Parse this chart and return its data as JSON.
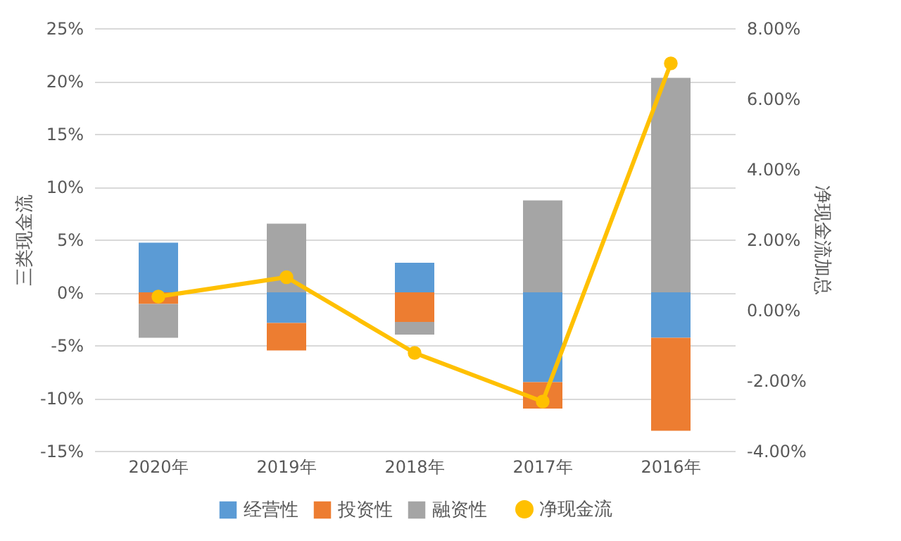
{
  "chart_data": {
    "type": "bar",
    "stacked": true,
    "xlabel": null,
    "ylabel": "三类现金流",
    "y2label": "净现金流加总",
    "categories": [
      "2020年",
      "2019年",
      "2018年",
      "2017年",
      "2016年"
    ],
    "series": [
      {
        "name": "经营性",
        "color": "#5b9bd5",
        "values": [
          4.7,
          -2.9,
          2.8,
          -8.5,
          -4.3
        ]
      },
      {
        "name": "投资性",
        "color": "#ed7d31",
        "values": [
          -1.1,
          -2.6,
          -2.8,
          -2.5,
          -8.8
        ]
      },
      {
        "name": "融资性",
        "color": "#a5a5a5",
        "values": [
          -3.2,
          6.5,
          -1.2,
          8.7,
          20.3
        ]
      },
      {
        "name": "净现金流",
        "type": "line",
        "axis": "y2",
        "color": "#ffc000",
        "values": [
          0.38,
          0.93,
          -1.22,
          -2.6,
          7.0
        ]
      }
    ],
    "ylim": [
      -15,
      25
    ],
    "yticks": [
      {
        "value": -15,
        "label": "-15%"
      },
      {
        "value": -10,
        "label": "-10%"
      },
      {
        "value": -5,
        "label": "-5%"
      },
      {
        "value": 0,
        "label": "0%"
      },
      {
        "value": 5,
        "label": "5%"
      },
      {
        "value": 10,
        "label": "10%"
      },
      {
        "value": 15,
        "label": "15%"
      },
      {
        "value": 20,
        "label": "20%"
      },
      {
        "value": 25,
        "label": "25%"
      }
    ],
    "y2lim": [
      -4,
      8
    ],
    "y2ticks": [
      {
        "value": -4,
        "label": "-4.00%"
      },
      {
        "value": -2,
        "label": "-2.00%"
      },
      {
        "value": 0,
        "label": "0.00%"
      },
      {
        "value": 2,
        "label": "2.00%"
      },
      {
        "value": 4,
        "label": "4.00%"
      },
      {
        "value": 6,
        "label": "6.00%"
      },
      {
        "value": 8,
        "label": "8.00%"
      }
    ],
    "grid": "y",
    "legend": "bottom",
    "marker": "circle",
    "line_style": "solid"
  }
}
